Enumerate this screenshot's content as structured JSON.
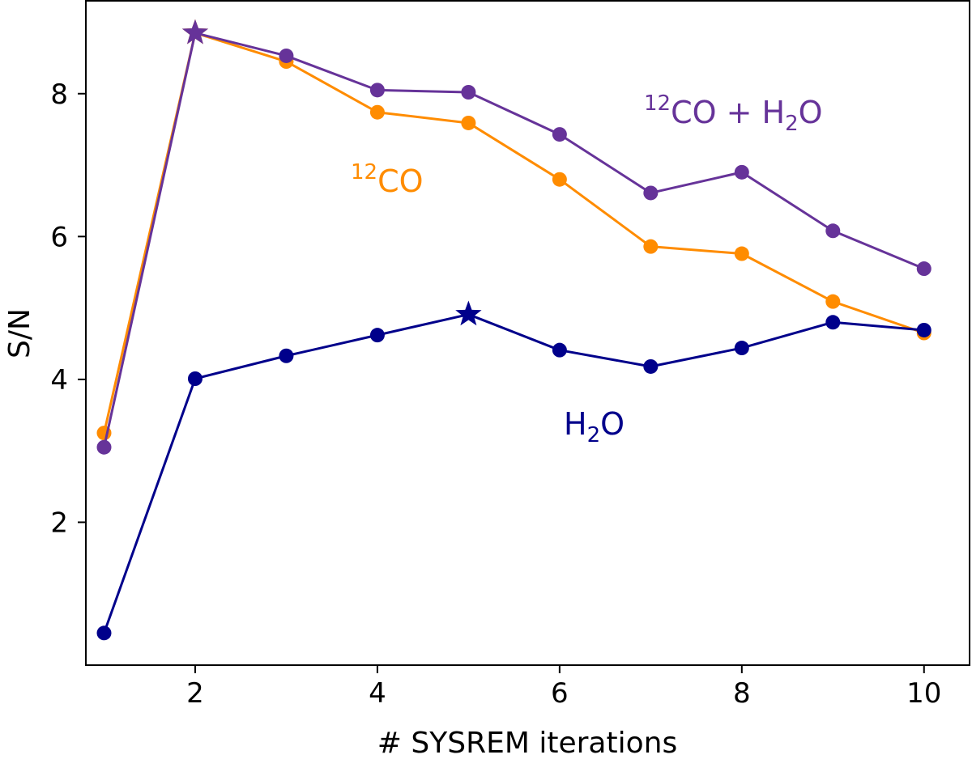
{
  "chart_data": {
    "type": "line",
    "title": "",
    "xlabel": "# SYSREM iterations",
    "ylabel": "S/N",
    "xlim": [
      0.8,
      10.5
    ],
    "ylim": [
      0.0,
      9.3
    ],
    "xticks": [
      2,
      4,
      6,
      8,
      10
    ],
    "yticks": [
      2,
      4,
      6,
      8
    ],
    "grid": false,
    "legend": "none",
    "x": [
      1,
      2,
      3,
      4,
      5,
      6,
      7,
      8,
      9,
      10
    ],
    "series": [
      {
        "key": "co",
        "label_main": "CO",
        "label_sup": "12",
        "color": "#ff8c00",
        "values": [
          3.25,
          8.85,
          8.45,
          7.74,
          7.59,
          6.8,
          5.86,
          5.76,
          5.09,
          4.65
        ],
        "star_index": 1
      },
      {
        "key": "co_h2o",
        "label_main": "CO + H",
        "label_sup": "12",
        "label_sub": "2",
        "label_tail": "O",
        "color": "#663399",
        "values": [
          3.05,
          8.85,
          8.53,
          8.05,
          8.02,
          7.43,
          6.61,
          6.9,
          6.08,
          5.55
        ],
        "star_index": 1
      },
      {
        "key": "h2o",
        "label_main": "H",
        "label_sub": "2",
        "label_tail": "O",
        "color": "#00008b",
        "values": [
          0.45,
          4.01,
          4.33,
          4.62,
          4.91,
          4.41,
          4.18,
          4.44,
          4.8,
          4.69
        ],
        "star_index": 4
      }
    ]
  }
}
